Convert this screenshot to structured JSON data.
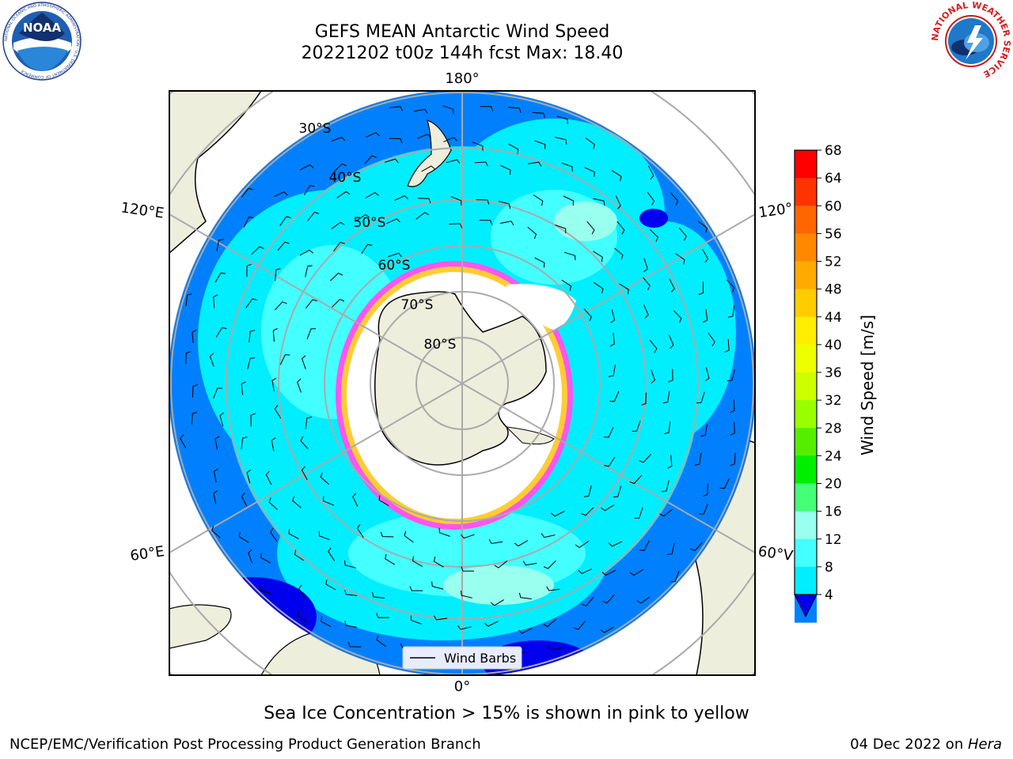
{
  "title": {
    "line1": "GEFS MEAN Antarctic Wind Speed",
    "line2": "20221202 t00z 144h fcst   Max: 18.40"
  },
  "logos": {
    "left": {
      "name": "NOAA",
      "ring_text": "NATIONAL OCEANIC AND ATMOSPHERIC ADMINISTRATION · U.S. DEPARTMENT OF COMMERCE"
    },
    "right": {
      "ring_text": "NATIONAL WEATHER SERVICE"
    }
  },
  "map": {
    "longitude_labels": [
      "180°",
      "120°E",
      "120°",
      "60°E",
      "60°V",
      "0°"
    ],
    "latitude_labels": [
      "30°S",
      "40°S",
      "50°S",
      "60°S",
      "70°S",
      "80°S"
    ],
    "legend": "Wind Barbs"
  },
  "colorbar": {
    "label": "Wind Speed [m/s]",
    "ticks": [
      "68",
      "64",
      "60",
      "56",
      "52",
      "48",
      "44",
      "40",
      "36",
      "32",
      "28",
      "24",
      "20",
      "16",
      "12",
      "8",
      "4"
    ],
    "colors": [
      "#ff0000",
      "#ff3300",
      "#ff6600",
      "#ff8800",
      "#ffaa00",
      "#ffcc00",
      "#ffee00",
      "#eeff00",
      "#ccff00",
      "#99ff00",
      "#55ee00",
      "#00ee00",
      "#44ff77",
      "#99ffee",
      "#44ffff",
      "#00eeff",
      "#0080ff"
    ],
    "under_color": "#0000ee"
  },
  "caption": "Sea Ice Concentration > 15% is shown in pink to yellow",
  "footer": {
    "left": "NCEP/EMC/Verification Post Processing Product Generation Branch",
    "right_prefix": "04 Dec 2022 on ",
    "right_host": "Hera"
  }
}
